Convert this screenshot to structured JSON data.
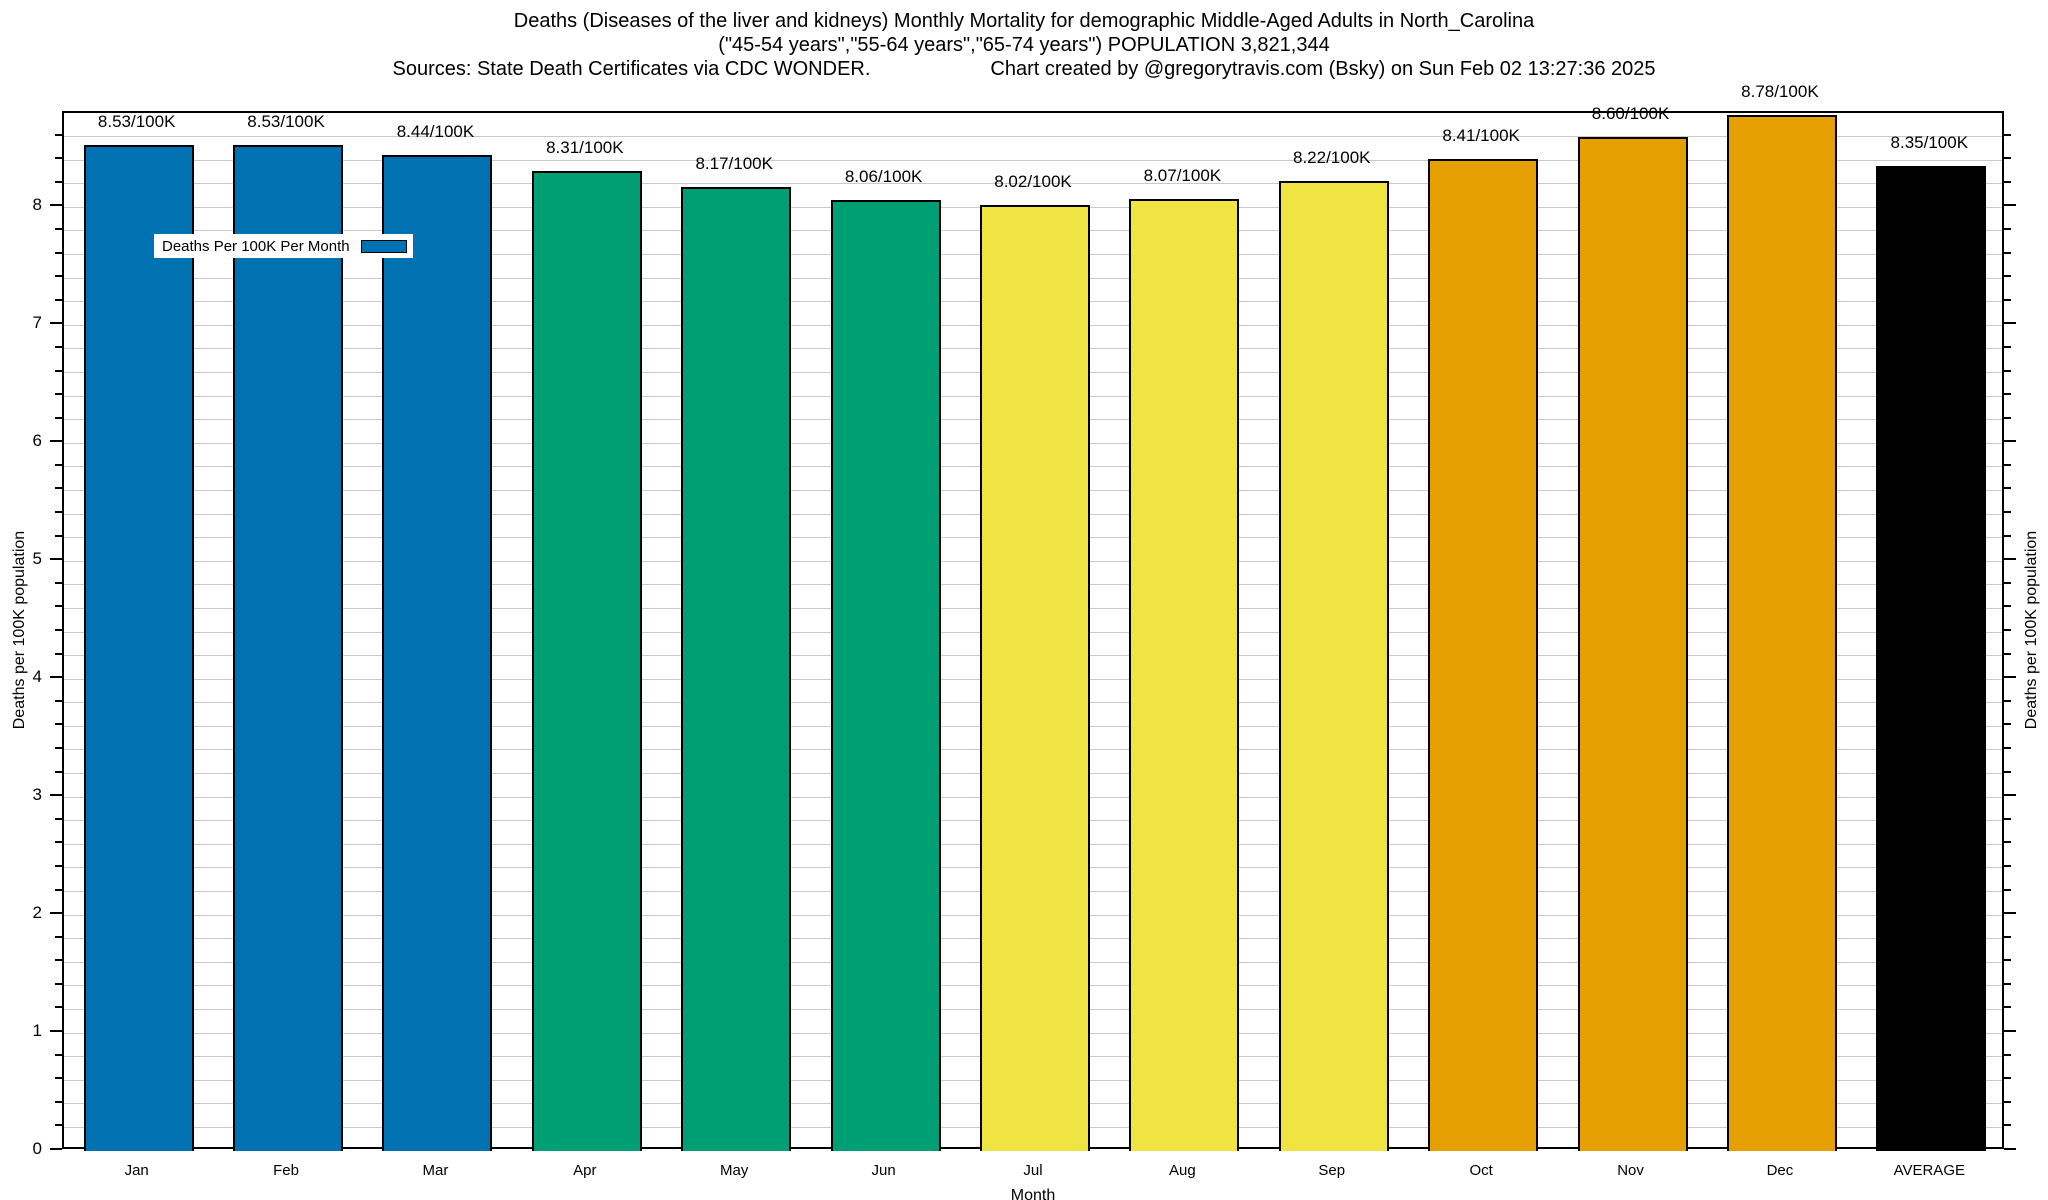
{
  "title": {
    "line1": "Deaths (Diseases of the liver and kidneys) Monthly Mortality for demographic Middle-Aged Adults in North_Carolina",
    "line2": "(\"45-54 years\",\"55-64 years\",\"65-74 years\") POPULATION 3,821,344",
    "sources": "Sources: State Death Certificates via CDC WONDER.",
    "credit": "Chart created by @gregorytravis.com (Bsky) on Sun Feb 02 13:27:36 2025"
  },
  "legend": {
    "label": "Deaths Per 100K Per Month",
    "swatch_color": "#0072B2"
  },
  "axes": {
    "x_label": "Month",
    "y_left_label": "Deaths per 100K population",
    "y_right_label": "Deaths per 100K population",
    "y_ticks": [
      0,
      1,
      2,
      3,
      4,
      5,
      6,
      7,
      8
    ],
    "y_minor_step": 0.2,
    "y_max": 8.8
  },
  "colors": {
    "background": "#ffffff",
    "axis": "#000000",
    "grid": "#c9c9c9",
    "bar_border": "#000000",
    "blue": "#0072B2",
    "green": "#009E73",
    "yellow": "#F0E442",
    "orange": "#E69F00",
    "black": "#000000"
  },
  "chart_data": {
    "type": "bar",
    "title": "Deaths (Diseases of the liver and kidneys) Monthly Mortality for demographic Middle-Aged Adults in North_Carolina",
    "xlabel": "Month",
    "ylabel": "Deaths per 100K population",
    "ylim": [
      0,
      8.8
    ],
    "grid": true,
    "legend_position": "top-left",
    "categories": [
      "Jan",
      "Feb",
      "Mar",
      "Apr",
      "May",
      "Jun",
      "Jul",
      "Aug",
      "Sep",
      "Oct",
      "Nov",
      "Dec",
      "AVERAGE"
    ],
    "values": [
      8.53,
      8.53,
      8.44,
      8.31,
      8.17,
      8.06,
      8.02,
      8.07,
      8.22,
      8.41,
      8.6,
      8.78,
      8.35
    ],
    "bar_labels": [
      "8.53/100K",
      "8.53/100K",
      "8.44/100K",
      "8.31/100K",
      "8.17/100K",
      "8.06/100K",
      "8.02/100K",
      "8.07/100K",
      "8.22/100K",
      "8.41/100K",
      "8.60/100K",
      "8.78/100K",
      "8.35/100K"
    ],
    "bar_colors": [
      "#0072B2",
      "#0072B2",
      "#0072B2",
      "#009E73",
      "#009E73",
      "#009E73",
      "#F0E442",
      "#F0E442",
      "#F0E442",
      "#E69F00",
      "#E69F00",
      "#E69F00",
      "#000000"
    ],
    "labels_hidden_by_legend": [
      0,
      1
    ]
  }
}
